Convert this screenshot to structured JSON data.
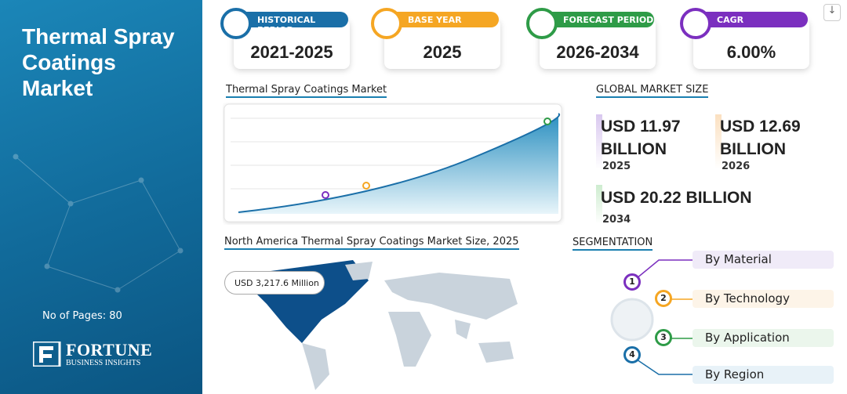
{
  "sidebar": {
    "title": "Thermal Spray Coatings Market",
    "pages": "No of Pages: 80",
    "brand": "FORTUNE",
    "brand_sub": "BUSINESS INSIGHTS"
  },
  "stats": [
    {
      "label": "HISTORICAL PERIOD",
      "value": "2021-2025"
    },
    {
      "label": "BASE YEAR",
      "value": "2025"
    },
    {
      "label": "FORECAST PERIOD",
      "value": "2026-2034"
    },
    {
      "label": "CAGR",
      "value": "6.00%"
    }
  ],
  "trend": {
    "title": "Thermal Spray Coatings Market"
  },
  "market_size": {
    "title": "GLOBAL MARKET SIZE",
    "items": [
      {
        "value": "USD 11.97 BILLION",
        "year": "2025"
      },
      {
        "value": "USD 12.69 BILLION",
        "year": "2026"
      },
      {
        "value": "USD 20.22 BILLION",
        "year": "2034"
      }
    ]
  },
  "regional": {
    "title": "North America Thermal Spray Coatings Market Size, 2025",
    "callout": "USD 3,217.6 Million"
  },
  "segmentation": {
    "title": "SEGMENTATION",
    "items": [
      {
        "number": "1",
        "label": "By Material"
      },
      {
        "number": "2",
        "label": "By Technology"
      },
      {
        "number": "3",
        "label": "By Application"
      },
      {
        "number": "4",
        "label": "By Region"
      }
    ]
  }
}
